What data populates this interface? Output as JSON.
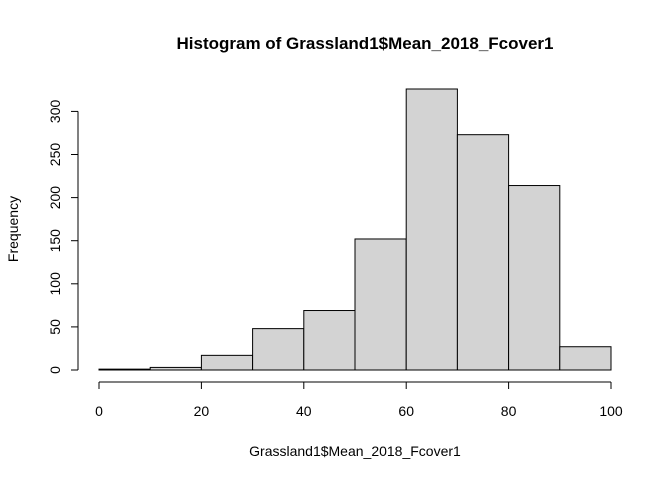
{
  "chart_data": {
    "type": "bar",
    "title": "Histogram of Grassland1$Mean_2018_Fcover1",
    "xlabel": "Grassland1$Mean_2018_Fcover1",
    "ylabel": "Frequency",
    "bins": [
      {
        "from": 0,
        "to": 10,
        "count": 1
      },
      {
        "from": 10,
        "to": 20,
        "count": 3
      },
      {
        "from": 20,
        "to": 30,
        "count": 17
      },
      {
        "from": 30,
        "to": 40,
        "count": 48
      },
      {
        "from": 40,
        "to": 50,
        "count": 69
      },
      {
        "from": 50,
        "to": 60,
        "count": 152
      },
      {
        "from": 60,
        "to": 70,
        "count": 326
      },
      {
        "from": 70,
        "to": 80,
        "count": 273
      },
      {
        "from": 80,
        "to": 90,
        "count": 214
      },
      {
        "from": 90,
        "to": 100,
        "count": 27
      }
    ],
    "xlim": [
      0,
      100
    ],
    "ylim": [
      0,
      326
    ],
    "x_ticks": [
      0,
      20,
      40,
      60,
      80,
      100
    ],
    "x_tick_labels": [
      "0",
      "20",
      "40",
      "60",
      "80",
      "100"
    ],
    "y_ticks": [
      0,
      50,
      100,
      150,
      200,
      250,
      300
    ],
    "y_tick_labels": [
      "0",
      "50",
      "100",
      "150",
      "200",
      "250",
      "300"
    ],
    "bar_fill": "#d3d3d3",
    "bar_stroke": "#000000",
    "grid": false
  }
}
